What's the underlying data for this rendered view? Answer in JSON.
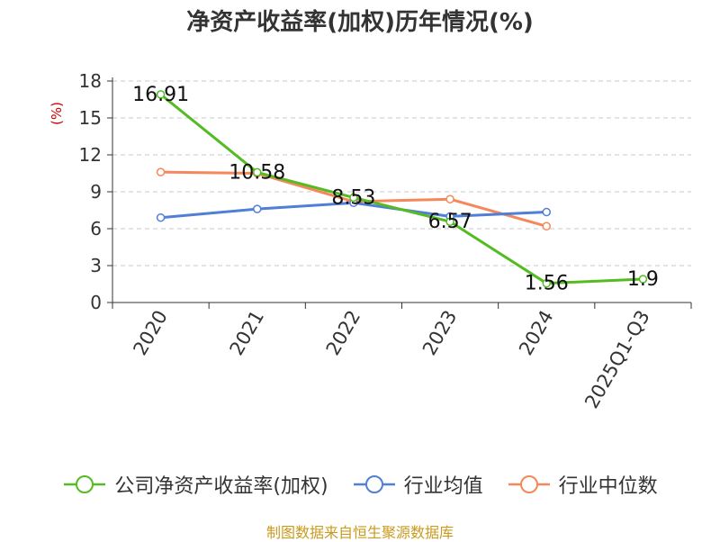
{
  "colors": {
    "series_green": "#55bb22",
    "series_blue": "#4f7fd6",
    "series_orange": "#f5885a",
    "ylabel": "#cc0000",
    "source": "#c99a1e"
  },
  "chart_data": {
    "type": "line",
    "title": "净资产收益率(加权)历年情况(%)",
    "ylabel": "(%)",
    "xlabel": "",
    "ylim": [
      0,
      18
    ],
    "yticks": [
      0,
      3,
      6,
      9,
      12,
      15,
      18
    ],
    "grid": true,
    "legend_position": "bottom",
    "categories": [
      "2020",
      "2021",
      "2022",
      "2023",
      "2024",
      "2025Q1-Q3"
    ],
    "series": [
      {
        "name": "公司净资产收益率(加权)",
        "color": "#55bb22",
        "values": [
          16.91,
          10.58,
          8.53,
          6.57,
          1.56,
          1.9
        ],
        "labels": [
          "16.91",
          "10.58",
          "8.53",
          "6.57",
          "1.56",
          "1.9"
        ]
      },
      {
        "name": "行业均值",
        "color": "#4f7fd6",
        "values": [
          6.9,
          7.6,
          8.1,
          7.0,
          7.35,
          null
        ]
      },
      {
        "name": "行业中位数",
        "color": "#f5885a",
        "values": [
          10.6,
          10.5,
          8.2,
          8.4,
          6.2,
          null
        ]
      }
    ]
  },
  "source_note": "制图数据来自恒生聚源数据库"
}
